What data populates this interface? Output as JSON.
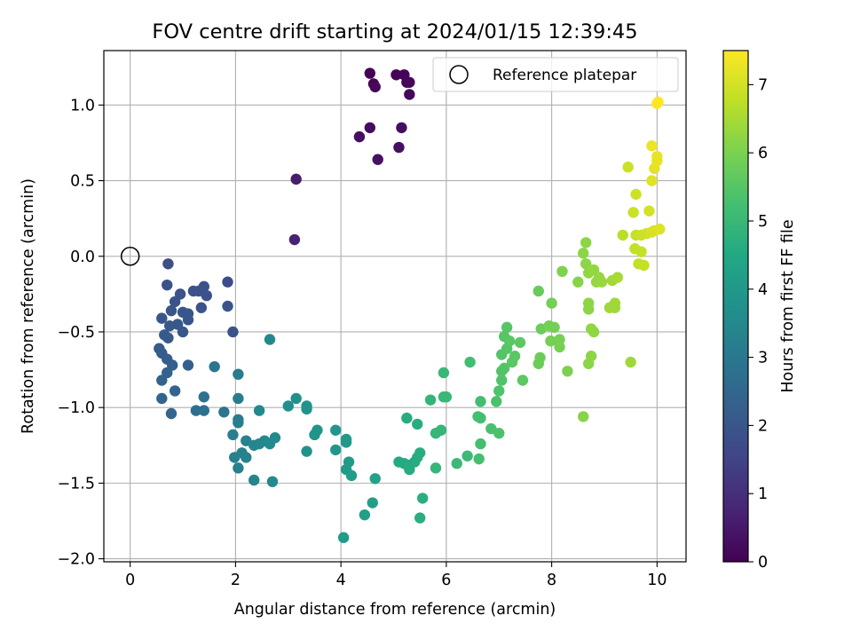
{
  "chart_data": {
    "type": "scatter",
    "title": "FOV centre drift starting at 2024/01/15 12:39:45",
    "xlabel": "Angular distance from reference (arcmin)",
    "ylabel": "Rotation from reference (arcmin)",
    "xlim": [
      -0.5,
      10.55
    ],
    "ylim": [
      -2.02,
      1.36
    ],
    "xticks": [
      0,
      2,
      4,
      6,
      8,
      10
    ],
    "xtick_labels": [
      "0",
      "2",
      "4",
      "6",
      "8",
      "10"
    ],
    "yticks": [
      -2.0,
      -1.5,
      -1.0,
      -0.5,
      0.0,
      0.5,
      1.0
    ],
    "ytick_labels": [
      "−2.0",
      "−1.5",
      "−1.0",
      "−0.5",
      "0.0",
      "0.5",
      "1.0"
    ],
    "grid": true,
    "legend": {
      "position": "top-right",
      "entries": [
        {
          "label": "Reference platepar",
          "marker": "open-circle"
        }
      ]
    },
    "reference_point": {
      "x": 0.0,
      "y": 0.0
    },
    "colorbar": {
      "label": "Hours from first FF file",
      "range": [
        0,
        7.5
      ],
      "ticks": [
        0,
        1,
        2,
        3,
        4,
        5,
        6,
        7
      ],
      "tick_labels": [
        "0",
        "1",
        "2",
        "3",
        "4",
        "5",
        "6",
        "7"
      ],
      "colormap": "viridis"
    },
    "points": [
      {
        "x": 4.55,
        "y": 1.21,
        "c": 0.02
      },
      {
        "x": 5.05,
        "y": 1.2,
        "c": 0.05
      },
      {
        "x": 5.2,
        "y": 1.2,
        "c": 0.08
      },
      {
        "x": 4.62,
        "y": 1.14,
        "c": 0.1
      },
      {
        "x": 5.25,
        "y": 1.15,
        "c": 0.12
      },
      {
        "x": 4.65,
        "y": 1.12,
        "c": 0.14
      },
      {
        "x": 5.3,
        "y": 1.15,
        "c": 0.16
      },
      {
        "x": 5.3,
        "y": 1.07,
        "c": 0.18
      },
      {
        "x": 4.55,
        "y": 0.85,
        "c": 0.25
      },
      {
        "x": 5.15,
        "y": 0.85,
        "c": 0.28
      },
      {
        "x": 4.35,
        "y": 0.79,
        "c": 0.3
      },
      {
        "x": 5.1,
        "y": 0.72,
        "c": 0.32
      },
      {
        "x": 4.7,
        "y": 0.64,
        "c": 0.35
      },
      {
        "x": 3.15,
        "y": 0.51,
        "c": 0.6
      },
      {
        "x": 3.12,
        "y": 0.11,
        "c": 0.7
      },
      {
        "x": 0.72,
        "y": -0.05,
        "c": 1.8
      },
      {
        "x": 0.7,
        "y": -0.19,
        "c": 1.85
      },
      {
        "x": 1.4,
        "y": -0.2,
        "c": 1.85
      },
      {
        "x": 1.85,
        "y": -0.17,
        "c": 1.75
      },
      {
        "x": 1.2,
        "y": -0.23,
        "c": 1.9
      },
      {
        "x": 1.3,
        "y": -0.23,
        "c": 1.9
      },
      {
        "x": 0.95,
        "y": -0.25,
        "c": 1.9
      },
      {
        "x": 1.45,
        "y": -0.26,
        "c": 1.9
      },
      {
        "x": 0.85,
        "y": -0.3,
        "c": 1.95
      },
      {
        "x": 1.35,
        "y": -0.34,
        "c": 1.95
      },
      {
        "x": 1.85,
        "y": -0.33,
        "c": 1.95
      },
      {
        "x": 0.78,
        "y": -0.36,
        "c": 2.0
      },
      {
        "x": 1.0,
        "y": -0.37,
        "c": 2.0
      },
      {
        "x": 1.1,
        "y": -0.38,
        "c": 2.0
      },
      {
        "x": 0.6,
        "y": -0.41,
        "c": 2.0
      },
      {
        "x": 1.1,
        "y": -0.42,
        "c": 2.0
      },
      {
        "x": 0.9,
        "y": -0.45,
        "c": 2.05
      },
      {
        "x": 0.75,
        "y": -0.46,
        "c": 2.05
      },
      {
        "x": 1.0,
        "y": -0.5,
        "c": 2.05
      },
      {
        "x": 1.95,
        "y": -0.5,
        "c": 1.9
      },
      {
        "x": 0.65,
        "y": -0.52,
        "c": 2.1
      },
      {
        "x": 0.72,
        "y": -0.54,
        "c": 2.1
      },
      {
        "x": 0.55,
        "y": -0.61,
        "c": 2.15
      },
      {
        "x": 0.6,
        "y": -0.64,
        "c": 2.15
      },
      {
        "x": 0.7,
        "y": -0.68,
        "c": 2.2
      },
      {
        "x": 0.8,
        "y": -0.72,
        "c": 2.25
      },
      {
        "x": 1.1,
        "y": -0.72,
        "c": 2.25
      },
      {
        "x": 0.7,
        "y": -0.77,
        "c": 2.3
      },
      {
        "x": 0.6,
        "y": -0.82,
        "c": 2.35
      },
      {
        "x": 0.85,
        "y": -0.89,
        "c": 2.4
      },
      {
        "x": 0.6,
        "y": -0.94,
        "c": 2.4
      },
      {
        "x": 0.78,
        "y": -1.04,
        "c": 2.45
      },
      {
        "x": 1.6,
        "y": -0.73,
        "c": 2.9
      },
      {
        "x": 1.4,
        "y": -0.93,
        "c": 2.8
      },
      {
        "x": 1.25,
        "y": -1.02,
        "c": 2.7
      },
      {
        "x": 1.4,
        "y": -1.02,
        "c": 2.75
      },
      {
        "x": 1.78,
        "y": -1.03,
        "c": 2.9
      },
      {
        "x": 2.05,
        "y": -0.78,
        "c": 3.1
      },
      {
        "x": 2.05,
        "y": -0.94,
        "c": 3.1
      },
      {
        "x": 2.65,
        "y": -0.55,
        "c": 3.5
      },
      {
        "x": 2.05,
        "y": -1.08,
        "c": 3.15
      },
      {
        "x": 2.05,
        "y": -1.1,
        "c": 3.15
      },
      {
        "x": 1.95,
        "y": -1.18,
        "c": 3.2
      },
      {
        "x": 2.2,
        "y": -1.22,
        "c": 3.3
      },
      {
        "x": 2.45,
        "y": -1.02,
        "c": 3.5
      },
      {
        "x": 2.55,
        "y": -1.22,
        "c": 3.5
      },
      {
        "x": 2.75,
        "y": -1.2,
        "c": 3.55
      },
      {
        "x": 2.65,
        "y": -1.24,
        "c": 3.55
      },
      {
        "x": 2.35,
        "y": -1.25,
        "c": 3.45
      },
      {
        "x": 2.45,
        "y": -1.24,
        "c": 3.45
      },
      {
        "x": 1.98,
        "y": -1.33,
        "c": 3.2
      },
      {
        "x": 2.12,
        "y": -1.3,
        "c": 3.25
      },
      {
        "x": 2.2,
        "y": -1.33,
        "c": 3.3
      },
      {
        "x": 2.05,
        "y": -1.4,
        "c": 3.2
      },
      {
        "x": 2.35,
        "y": -1.48,
        "c": 3.4
      },
      {
        "x": 2.7,
        "y": -1.49,
        "c": 3.55
      },
      {
        "x": 3.0,
        "y": -0.99,
        "c": 3.7
      },
      {
        "x": 3.15,
        "y": -0.94,
        "c": 3.75
      },
      {
        "x": 3.35,
        "y": -0.99,
        "c": 3.8
      },
      {
        "x": 3.35,
        "y": -1.01,
        "c": 3.8
      },
      {
        "x": 3.5,
        "y": -1.18,
        "c": 3.85
      },
      {
        "x": 3.55,
        "y": -1.15,
        "c": 3.85
      },
      {
        "x": 3.35,
        "y": -1.29,
        "c": 3.8
      },
      {
        "x": 3.9,
        "y": -1.15,
        "c": 3.95
      },
      {
        "x": 4.1,
        "y": -1.21,
        "c": 4.0
      },
      {
        "x": 4.1,
        "y": -1.23,
        "c": 4.0
      },
      {
        "x": 3.9,
        "y": -1.28,
        "c": 3.95
      },
      {
        "x": 4.15,
        "y": -1.36,
        "c": 4.05
      },
      {
        "x": 4.1,
        "y": -1.41,
        "c": 4.05
      },
      {
        "x": 4.2,
        "y": -1.45,
        "c": 4.1
      },
      {
        "x": 4.65,
        "y": -1.47,
        "c": 4.3
      },
      {
        "x": 4.6,
        "y": -1.63,
        "c": 4.25
      },
      {
        "x": 4.45,
        "y": -1.71,
        "c": 4.2
      },
      {
        "x": 4.05,
        "y": -1.86,
        "c": 4.1
      },
      {
        "x": 5.25,
        "y": -1.07,
        "c": 4.6
      },
      {
        "x": 5.45,
        "y": -1.11,
        "c": 4.65
      },
      {
        "x": 5.5,
        "y": -1.3,
        "c": 4.65
      },
      {
        "x": 5.45,
        "y": -1.33,
        "c": 4.65
      },
      {
        "x": 5.4,
        "y": -1.36,
        "c": 4.6
      },
      {
        "x": 5.1,
        "y": -1.36,
        "c": 4.55
      },
      {
        "x": 5.2,
        "y": -1.37,
        "c": 4.55
      },
      {
        "x": 5.3,
        "y": -1.38,
        "c": 4.6
      },
      {
        "x": 5.3,
        "y": -1.41,
        "c": 4.6
      },
      {
        "x": 5.55,
        "y": -1.6,
        "c": 4.7
      },
      {
        "x": 5.5,
        "y": -1.73,
        "c": 4.7
      },
      {
        "x": 5.7,
        "y": -0.95,
        "c": 4.9
      },
      {
        "x": 5.95,
        "y": -0.77,
        "c": 5.0
      },
      {
        "x": 5.95,
        "y": -0.93,
        "c": 5.0
      },
      {
        "x": 6.0,
        "y": -0.93,
        "c": 5.0
      },
      {
        "x": 5.8,
        "y": -1.17,
        "c": 4.95
      },
      {
        "x": 5.9,
        "y": -1.15,
        "c": 4.95
      },
      {
        "x": 5.8,
        "y": -1.4,
        "c": 4.95
      },
      {
        "x": 6.2,
        "y": -1.37,
        "c": 5.05
      },
      {
        "x": 6.4,
        "y": -1.32,
        "c": 5.1
      },
      {
        "x": 6.45,
        "y": -0.7,
        "c": 5.2
      },
      {
        "x": 6.65,
        "y": -0.96,
        "c": 5.2
      },
      {
        "x": 6.6,
        "y": -1.06,
        "c": 5.25
      },
      {
        "x": 6.65,
        "y": -1.07,
        "c": 5.25
      },
      {
        "x": 6.65,
        "y": -1.24,
        "c": 5.25
      },
      {
        "x": 6.62,
        "y": -1.34,
        "c": 5.25
      },
      {
        "x": 6.85,
        "y": -1.14,
        "c": 5.3
      },
      {
        "x": 7.0,
        "y": -1.17,
        "c": 5.35
      },
      {
        "x": 6.95,
        "y": -0.96,
        "c": 5.35
      },
      {
        "x": 7.0,
        "y": -0.89,
        "c": 5.4
      },
      {
        "x": 7.05,
        "y": -0.82,
        "c": 5.4
      },
      {
        "x": 7.05,
        "y": -0.76,
        "c": 5.45
      },
      {
        "x": 7.1,
        "y": -0.74,
        "c": 5.45
      },
      {
        "x": 7.05,
        "y": -0.65,
        "c": 5.45
      },
      {
        "x": 7.15,
        "y": -0.61,
        "c": 5.5
      },
      {
        "x": 7.1,
        "y": -0.53,
        "c": 5.5
      },
      {
        "x": 7.15,
        "y": -0.47,
        "c": 5.5
      },
      {
        "x": 7.2,
        "y": -0.56,
        "c": 5.55
      },
      {
        "x": 7.3,
        "y": -0.66,
        "c": 5.55
      },
      {
        "x": 7.25,
        "y": -0.7,
        "c": 5.55
      },
      {
        "x": 7.4,
        "y": -0.57,
        "c": 5.6
      },
      {
        "x": 7.45,
        "y": -0.82,
        "c": 5.6
      },
      {
        "x": 7.75,
        "y": -0.23,
        "c": 5.75
      },
      {
        "x": 7.8,
        "y": -0.48,
        "c": 5.8
      },
      {
        "x": 7.78,
        "y": -0.67,
        "c": 5.8
      },
      {
        "x": 7.75,
        "y": -0.71,
        "c": 5.8
      },
      {
        "x": 8.0,
        "y": -0.31,
        "c": 5.9
      },
      {
        "x": 7.95,
        "y": -0.46,
        "c": 5.9
      },
      {
        "x": 8.05,
        "y": -0.47,
        "c": 5.9
      },
      {
        "x": 7.98,
        "y": -0.56,
        "c": 5.9
      },
      {
        "x": 8.15,
        "y": -0.55,
        "c": 5.95
      },
      {
        "x": 8.15,
        "y": -0.6,
        "c": 5.95
      },
      {
        "x": 8.3,
        "y": -0.76,
        "c": 6.0
      },
      {
        "x": 8.2,
        "y": -0.1,
        "c": 6.05
      },
      {
        "x": 8.5,
        "y": -0.17,
        "c": 6.15
      },
      {
        "x": 8.6,
        "y": 0.02,
        "c": 6.2
      },
      {
        "x": 8.65,
        "y": 0.09,
        "c": 6.2
      },
      {
        "x": 8.65,
        "y": -0.05,
        "c": 6.2
      },
      {
        "x": 8.7,
        "y": -0.11,
        "c": 6.25
      },
      {
        "x": 8.8,
        "y": -0.09,
        "c": 6.3
      },
      {
        "x": 8.85,
        "y": -0.17,
        "c": 6.3
      },
      {
        "x": 8.9,
        "y": -0.14,
        "c": 6.3
      },
      {
        "x": 8.95,
        "y": -0.17,
        "c": 6.35
      },
      {
        "x": 8.7,
        "y": -0.31,
        "c": 6.2
      },
      {
        "x": 8.7,
        "y": -0.35,
        "c": 6.2
      },
      {
        "x": 8.75,
        "y": -0.48,
        "c": 6.25
      },
      {
        "x": 8.8,
        "y": -0.5,
        "c": 6.25
      },
      {
        "x": 8.75,
        "y": -0.66,
        "c": 6.2
      },
      {
        "x": 8.7,
        "y": -0.71,
        "c": 6.2
      },
      {
        "x": 8.6,
        "y": -1.06,
        "c": 6.15
      },
      {
        "x": 9.1,
        "y": -0.34,
        "c": 6.4
      },
      {
        "x": 9.2,
        "y": -0.31,
        "c": 6.4
      },
      {
        "x": 9.2,
        "y": -0.34,
        "c": 6.4
      },
      {
        "x": 9.15,
        "y": -0.16,
        "c": 6.45
      },
      {
        "x": 9.25,
        "y": -0.14,
        "c": 6.5
      },
      {
        "x": 9.35,
        "y": 0.14,
        "c": 6.7
      },
      {
        "x": 9.45,
        "y": 0.59,
        "c": 6.9
      },
      {
        "x": 9.5,
        "y": -0.7,
        "c": 6.4
      },
      {
        "x": 9.55,
        "y": 0.29,
        "c": 6.9
      },
      {
        "x": 9.6,
        "y": 0.41,
        "c": 6.95
      },
      {
        "x": 9.6,
        "y": 0.14,
        "c": 6.85
      },
      {
        "x": 9.58,
        "y": 0.05,
        "c": 6.8
      },
      {
        "x": 9.65,
        "y": -0.05,
        "c": 6.8
      },
      {
        "x": 9.75,
        "y": -0.06,
        "c": 6.85
      },
      {
        "x": 9.7,
        "y": 0.03,
        "c": 6.85
      },
      {
        "x": 9.7,
        "y": 0.14,
        "c": 6.9
      },
      {
        "x": 9.8,
        "y": 0.15,
        "c": 6.95
      },
      {
        "x": 9.85,
        "y": 0.3,
        "c": 7.0
      },
      {
        "x": 9.9,
        "y": 0.16,
        "c": 7.05
      },
      {
        "x": 9.95,
        "y": 0.17,
        "c": 7.05
      },
      {
        "x": 10.05,
        "y": 0.18,
        "c": 7.1
      },
      {
        "x": 9.9,
        "y": 0.5,
        "c": 7.15
      },
      {
        "x": 9.95,
        "y": 0.58,
        "c": 7.2
      },
      {
        "x": 10.0,
        "y": 0.63,
        "c": 7.25
      },
      {
        "x": 10.0,
        "y": 0.66,
        "c": 7.25
      },
      {
        "x": 9.9,
        "y": 0.73,
        "c": 7.3
      },
      {
        "x": 10.0,
        "y": 1.01,
        "c": 7.45
      },
      {
        "x": 10.02,
        "y": 1.02,
        "c": 7.5
      }
    ]
  }
}
